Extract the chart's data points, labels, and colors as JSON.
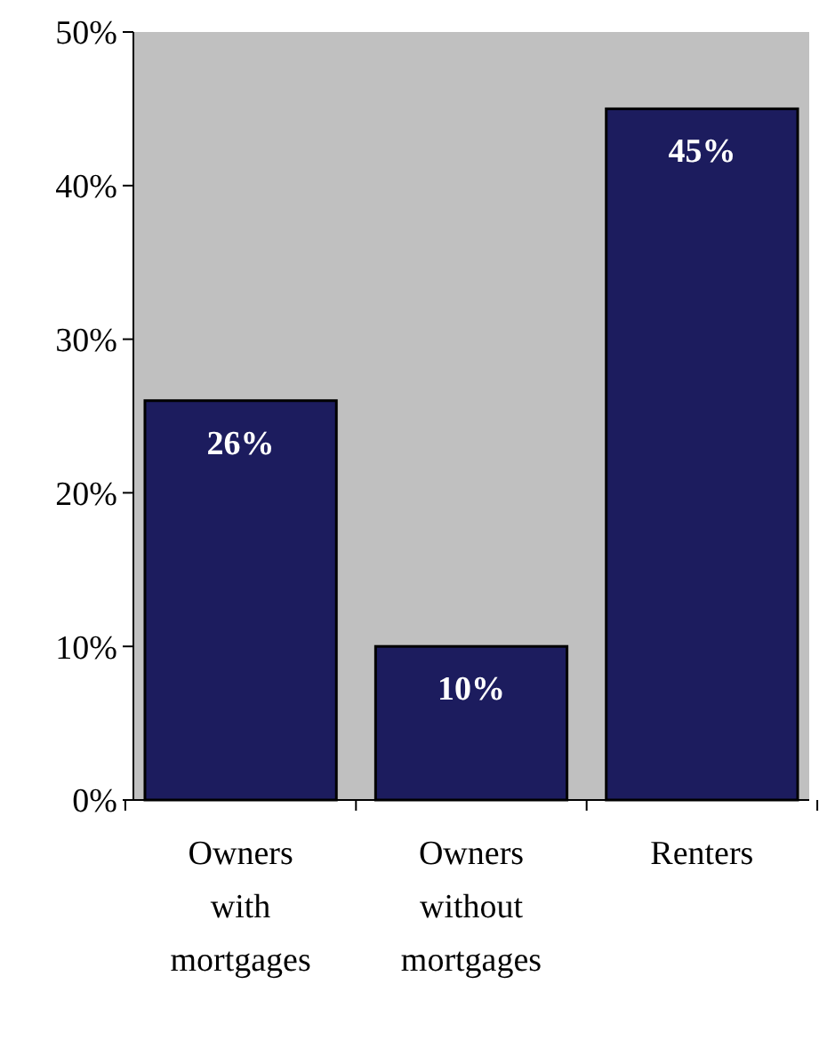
{
  "chart_data": {
    "type": "bar",
    "categories": [
      "Owners with mortgages",
      "Owners without mortgages",
      "Renters"
    ],
    "values": [
      26,
      10,
      45
    ],
    "color": "#1c1c5e",
    "value_labels": [
      "26%",
      "10%",
      "45%"
    ],
    "ylim": [
      0,
      50
    ],
    "yticks": [
      {
        "value": 0,
        "label": "0%"
      },
      {
        "value": 10,
        "label": "10%"
      },
      {
        "value": 20,
        "label": "20%"
      },
      {
        "value": 30,
        "label": "30%"
      },
      {
        "value": 40,
        "label": "40%"
      },
      {
        "value": 50,
        "label": "50%"
      }
    ],
    "grid": false
  }
}
